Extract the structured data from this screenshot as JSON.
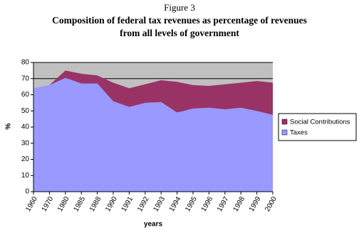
{
  "chart_data": {
    "type": "stacked_area",
    "figure_label": "Figure 3",
    "title": [
      "Composition of federal tax revenues as percentage of revenues",
      "from all levels of government"
    ],
    "y_label": "%",
    "x_label": "years",
    "categories": [
      "1960",
      "1970",
      "1980",
      "1985",
      "1988",
      "1990",
      "1991",
      "1992",
      "1993",
      "1994",
      "1995",
      "1996",
      "1997",
      "1998",
      "1999",
      "2000"
    ],
    "series": [
      {
        "name": "Taxes",
        "color": "#9999ff",
        "values": [
          64,
          66,
          70.5,
          67,
          67,
          56,
          52.5,
          55,
          55.5,
          49,
          51.5,
          52,
          51,
          52,
          50,
          47.5
        ]
      },
      {
        "name": "Social Contributions",
        "color": "#993366",
        "values": [
          0,
          0,
          4.5,
          6,
          5,
          11.5,
          11.5,
          11.5,
          13.5,
          19,
          14.5,
          13.5,
          15.5,
          15.5,
          18.5,
          20
        ]
      }
    ],
    "ylim": [
      0,
      80
    ],
    "yticks": [
      0,
      10,
      20,
      30,
      40,
      50,
      60,
      70,
      80
    ],
    "grid": true,
    "background": "#c0c0c0"
  }
}
